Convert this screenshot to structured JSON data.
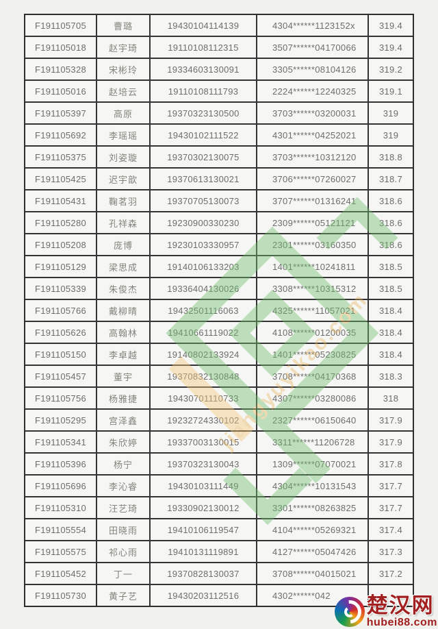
{
  "page": {
    "background": "#f1f1ee",
    "border_color": "#343434",
    "cell_background": "#f6f6f4"
  },
  "table": {
    "columns": [
      "registration_no",
      "name",
      "exam_no",
      "id_masked",
      "score"
    ],
    "rows": [
      {
        "reg": "F191105705",
        "name": "曹璐",
        "exam": "19430104114139",
        "id": "4304******1123152x",
        "score": "319.4"
      },
      {
        "reg": "F191105018",
        "name": "赵宇琦",
        "exam": "19110108112315",
        "id": "3507******04170066",
        "score": "319.4"
      },
      {
        "reg": "F191105328",
        "name": "宋彬玲",
        "exam": "19334603130091",
        "id": "3305******08104126",
        "score": "319.2"
      },
      {
        "reg": "F191105016",
        "name": "赵培云",
        "exam": "19110108111793",
        "id": "2224******12240325",
        "score": "319.1"
      },
      {
        "reg": "F191105397",
        "name": "高原",
        "exam": "19370323130500",
        "id": "3703******03200031",
        "score": "319"
      },
      {
        "reg": "F191105692",
        "name": "李瑶瑶",
        "exam": "19430102111522",
        "id": "4301******04252021",
        "score": "319"
      },
      {
        "reg": "F191105375",
        "name": "刘姿璇",
        "exam": "19370302130075",
        "id": "3703******10312120",
        "score": "318.8"
      },
      {
        "reg": "F191105425",
        "name": "迟宇歆",
        "exam": "19370613130021",
        "id": "3706******07260027",
        "score": "318.7"
      },
      {
        "reg": "F191105431",
        "name": "鞠茗羽",
        "exam": "19370705130073",
        "id": "3707******01316241",
        "score": "318.6"
      },
      {
        "reg": "F191105280",
        "name": "孔祥森",
        "exam": "19230900330230",
        "id": "2309******05121121",
        "score": "318.6"
      },
      {
        "reg": "F191105208",
        "name": "庞博",
        "exam": "19230103330957",
        "id": "2301******03160350",
        "score": "318.6"
      },
      {
        "reg": "F191105129",
        "name": "梁思成",
        "exam": "19140106133203",
        "id": "1401******10241811",
        "score": "318.5"
      },
      {
        "reg": "F191105339",
        "name": "朱俊杰",
        "exam": "19336404130026",
        "id": "3308******10315312",
        "score": "318.5"
      },
      {
        "reg": "F191105766",
        "name": "戴柳晴",
        "exam": "19432501116063",
        "id": "4325******11057021",
        "score": "318.4"
      },
      {
        "reg": "F191105626",
        "name": "高翰林",
        "exam": "19410661119022",
        "id": "4108******01200035",
        "score": "318.4"
      },
      {
        "reg": "F191105150",
        "name": "李卓越",
        "exam": "19140802133924",
        "id": "1401******05230825",
        "score": "318.4"
      },
      {
        "reg": "F191105457",
        "name": "董宇",
        "exam": "19370832130848",
        "id": "3708******04170368",
        "score": "318.3"
      },
      {
        "reg": "F191105756",
        "name": "杨雅捷",
        "exam": "19430701110733",
        "id": "4307******03280086",
        "score": "318"
      },
      {
        "reg": "F191105295",
        "name": "宫泽鑫",
        "exam": "19232724330102",
        "id": "2327******06150640",
        "score": "317.9"
      },
      {
        "reg": "F191105341",
        "name": "朱欣婷",
        "exam": "19337003130015",
        "id": "3311******11206728",
        "score": "317.9"
      },
      {
        "reg": "F191105396",
        "name": "杨宁",
        "exam": "19370323130043",
        "id": "1309******07070021",
        "score": "317.8"
      },
      {
        "reg": "F191105696",
        "name": "李沁睿",
        "exam": "19430103111449",
        "id": "4304******10131543",
        "score": "317.7"
      },
      {
        "reg": "F191105310",
        "name": "汪艺琦",
        "exam": "19330902130012",
        "id": "3301******08263825",
        "score": "317.7"
      },
      {
        "reg": "F191105554",
        "name": "田晓雨",
        "exam": "19410106119547",
        "id": "4104******05269321",
        "score": "317.4"
      },
      {
        "reg": "F191105575",
        "name": "祁心雨",
        "exam": "19410131119891",
        "id": "4127******05047426",
        "score": "317.3"
      },
      {
        "reg": "F191105452",
        "name": "丁一",
        "exam": "19370828130037",
        "id": "3708******04015021",
        "score": "317.2"
      },
      {
        "reg": "F191105730",
        "name": "黄子艺",
        "exam": "19430203112516",
        "id": "4302******042",
        "score": ""
      }
    ]
  },
  "watermark": {
    "text": "jiangyuyikao.com",
    "green": "#6fbf6f",
    "yellow": "#f2c87d"
  },
  "site_logo": {
    "title": "楚汉网",
    "domain": "hubei88.com",
    "red": "#a32020"
  }
}
